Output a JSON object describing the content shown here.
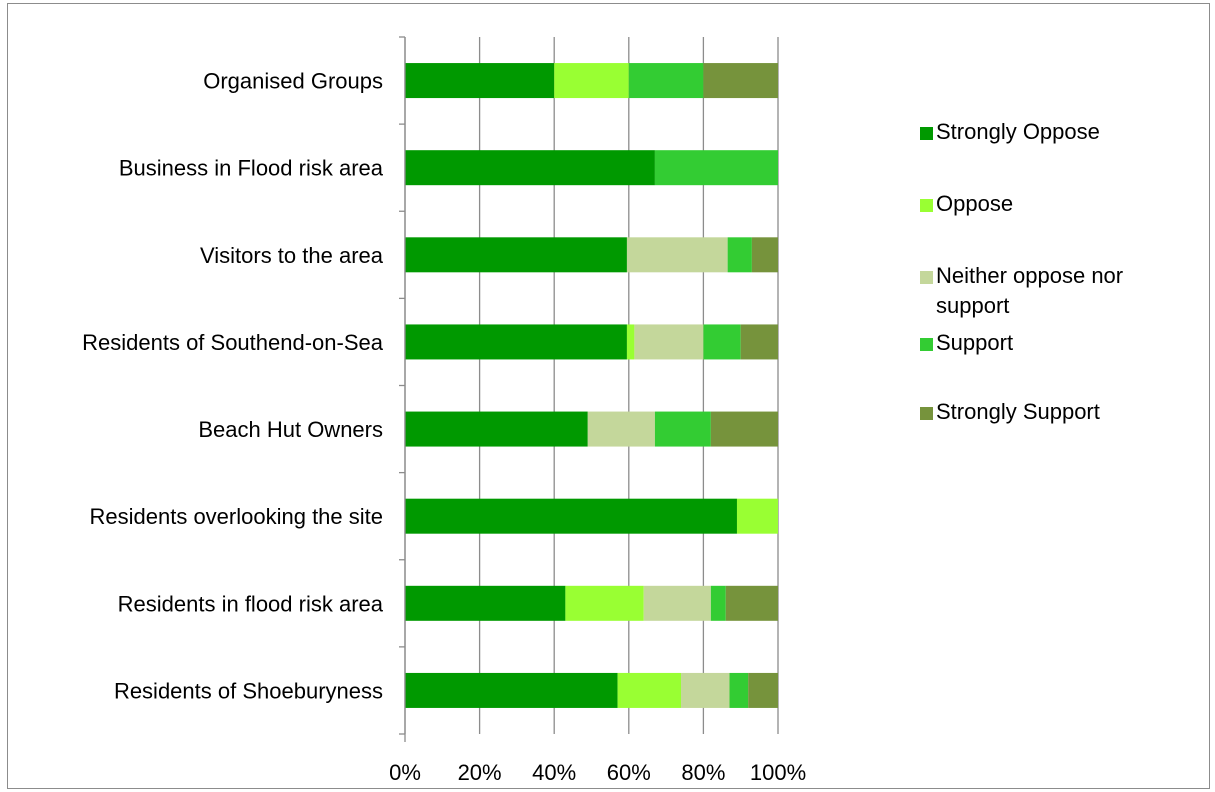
{
  "chart_data": {
    "type": "bar",
    "orientation": "horizontal",
    "stacked": "percent",
    "categories": [
      "Organised Groups",
      "Business in Flood risk area",
      "Visitors to the area",
      "Residents of Southend-on-Sea",
      "Beach Hut Owners",
      "Residents overlooking the site",
      "Residents in flood risk area",
      "Residents of Shoeburyness"
    ],
    "series": [
      {
        "name": "Strongly Oppose",
        "color": "#009900",
        "values": [
          40,
          67,
          59.5,
          59.5,
          49,
          89,
          43,
          57
        ]
      },
      {
        "name": "Oppose",
        "color": "#99ff33",
        "values": [
          20,
          0,
          0,
          2,
          0,
          11,
          21,
          17
        ]
      },
      {
        "name": "Neither oppose nor support",
        "color": "#c4d79b",
        "values": [
          0,
          0,
          27,
          18.5,
          18,
          0,
          18,
          13
        ]
      },
      {
        "name": "Support",
        "color": "#33cc33",
        "values": [
          20,
          33,
          6.5,
          10,
          15,
          0,
          4,
          5
        ]
      },
      {
        "name": "Strongly Support",
        "color": "#76933c",
        "values": [
          20,
          0,
          7,
          10,
          18,
          0,
          14,
          8
        ]
      }
    ],
    "x_ticks": [
      "0%",
      "20%",
      "40%",
      "60%",
      "80%",
      "100%"
    ],
    "xlim": [
      0,
      100
    ],
    "grid": true,
    "legend": "right"
  }
}
